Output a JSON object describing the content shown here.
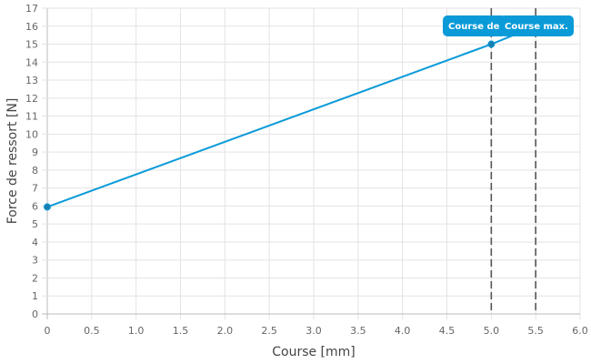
{
  "chart_data": {
    "type": "line",
    "xlabel": "Course [mm]",
    "ylabel": "Force de ressort [N]",
    "xlim": [
      0,
      6
    ],
    "ylim": [
      0,
      17
    ],
    "xticks": [
      "0",
      "0.5",
      "1.0",
      "1.5",
      "2.0",
      "2.5",
      "3.0",
      "3.5",
      "4.0",
      "4.5",
      "5.0",
      "5.5",
      "6.0"
    ],
    "yticks": [
      "0",
      "1",
      "2",
      "3",
      "4",
      "5",
      "6",
      "7",
      "8",
      "9",
      "10",
      "11",
      "12",
      "13",
      "14",
      "15",
      "16",
      "17"
    ],
    "grid": true,
    "series": [
      {
        "x": [
          0,
          5,
          5.5
        ],
        "y": [
          5.95,
          15,
          16
        ],
        "markers": [
          0,
          5
        ],
        "color": "#0a9ad8"
      }
    ],
    "annotations": [
      {
        "x": 5.0,
        "label": "Course de",
        "style": "dashed vertical line"
      },
      {
        "x": 5.5,
        "label": "Course max.",
        "style": "dashed vertical line"
      }
    ],
    "label_color": "#0a9ad8"
  }
}
